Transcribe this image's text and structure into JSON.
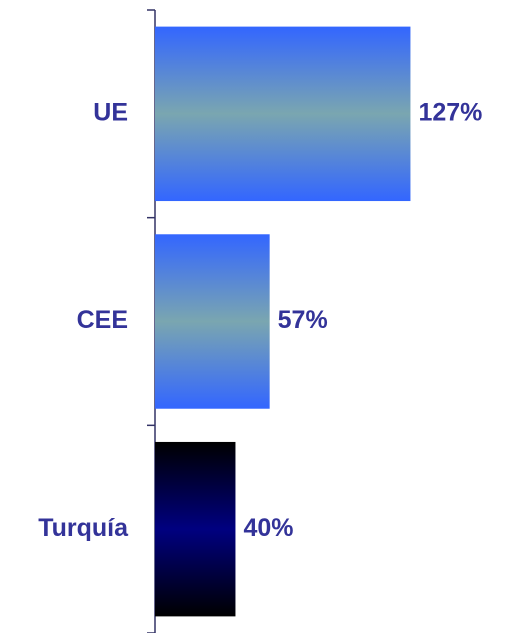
{
  "chart_data": {
    "type": "hbar",
    "categories": [
      "UE",
      "CEE",
      "Turquía"
    ],
    "values": [
      127,
      57,
      40
    ],
    "value_labels": [
      "127%",
      "57%",
      "40%"
    ],
    "colors": [
      [
        "#3366ff",
        "#7aa6b0"
      ],
      [
        "#3366ff",
        "#7aa6b0"
      ],
      [
        "#000000",
        "#000080"
      ]
    ],
    "xlim": [
      0,
      175
    ]
  }
}
